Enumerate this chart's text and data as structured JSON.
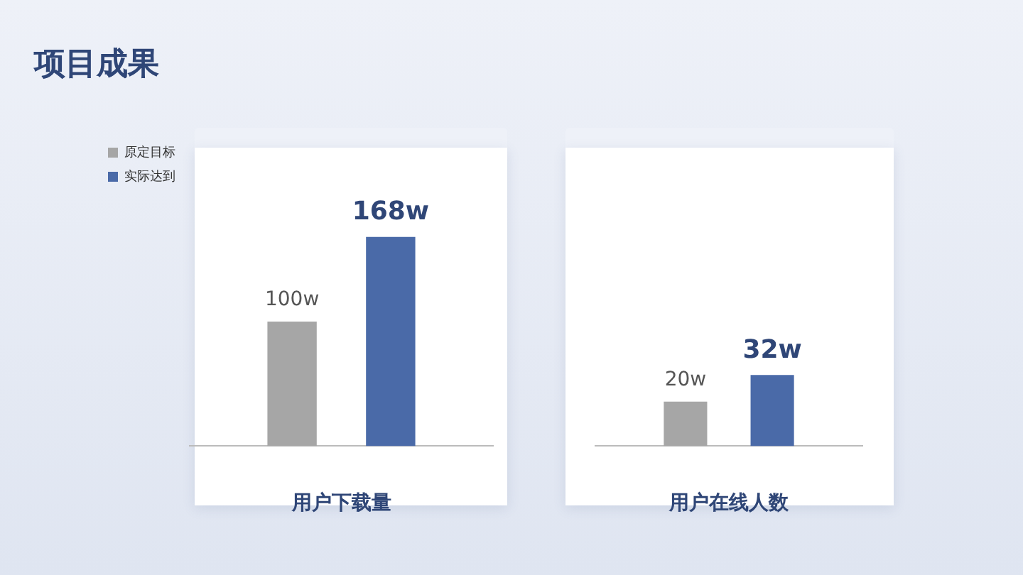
{
  "chart_data": [
    {
      "type": "bar",
      "title": "项目成果",
      "categories": [
        "用户下载量"
      ],
      "tick_labels": "x",
      "grid": false,
      "legend": "left",
      "series": [
        {
          "name": "原定目标",
          "color": "#a6a6a6",
          "values": [
            100
          ],
          "value_labels": [
            "100w"
          ]
        },
        {
          "name": "实际达到",
          "color": "#4a6aa8",
          "values": [
            168
          ],
          "value_labels": [
            "168w"
          ]
        }
      ]
    },
    {
      "type": "bar",
      "categories": [
        "用户在线人数"
      ],
      "tick_labels": "x",
      "grid": false,
      "legend": false,
      "series": [
        {
          "color": "#a6a6a6",
          "values": [
            20
          ],
          "value_labels": [
            "20w"
          ]
        },
        {
          "color": "#4a6aa8",
          "values": [
            32
          ],
          "value_labels": [
            "32w"
          ]
        }
      ]
    }
  ]
}
